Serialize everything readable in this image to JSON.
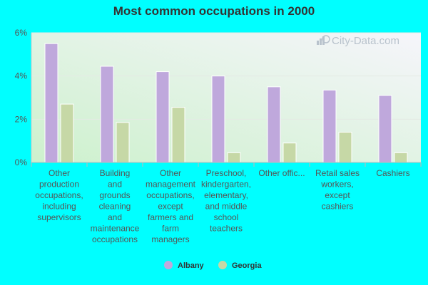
{
  "chart_data": {
    "type": "bar",
    "title": "Most common occupations in 2000",
    "categories": [
      [
        "Other",
        "production",
        "occupations,",
        "including",
        "supervisors"
      ],
      [
        "Building",
        "and",
        "grounds",
        "cleaning",
        "and",
        "maintenance",
        "occupations"
      ],
      [
        "Other",
        "management",
        "occupations,",
        "except",
        "farmers and",
        "farm",
        "managers"
      ],
      [
        "Preschool,",
        "kindergarten,",
        "elementary,",
        "and middle",
        "school",
        "teachers"
      ],
      [
        "Other offic..."
      ],
      [
        "Retail sales",
        "workers,",
        "except",
        "cashiers"
      ],
      [
        "Cashiers"
      ]
    ],
    "series": [
      {
        "name": "Albany",
        "values": [
          5.5,
          4.45,
          4.2,
          4.0,
          3.5,
          3.35,
          3.1
        ],
        "color": "#bfa8dc"
      },
      {
        "name": "Georgia",
        "values": [
          2.7,
          1.85,
          2.55,
          0.45,
          0.9,
          1.4,
          0.45
        ],
        "color": "#c6d8a6"
      }
    ],
    "ylim": [
      0,
      6
    ],
    "yticks": [
      0,
      2,
      4,
      6
    ],
    "ytick_labels": [
      "0%",
      "2%",
      "4%",
      "6%"
    ],
    "grid": true,
    "legend": "bottom-center"
  },
  "watermark": "City-Data.com"
}
